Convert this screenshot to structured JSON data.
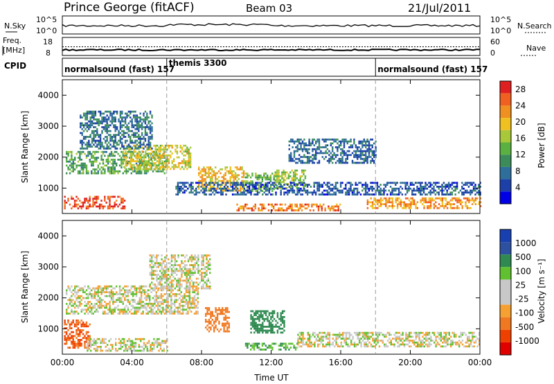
{
  "header": {
    "station": "Prince George (fitACF)",
    "beam": "Beam 03",
    "date": "21/Jul/2011"
  },
  "noise_panel": {
    "left_label": "N.Sky",
    "right_label": "N.Search",
    "left_ticks": [
      "10^5",
      "10^0"
    ],
    "right_ticks": [
      "10^5",
      "10^0"
    ]
  },
  "freq_panel": {
    "left_label_1": "Freq.",
    "left_label_2": "[MHz]",
    "left_ticks": [
      "18",
      "8"
    ],
    "right_label": "Nave",
    "right_ticks": [
      "60",
      "0"
    ]
  },
  "cpid_panel": {
    "label": "CPID",
    "segments": [
      {
        "start_hour": 0,
        "end_hour": 6,
        "text": "normalsound (fast) 157"
      },
      {
        "start_hour": 6,
        "end_hour": 18,
        "text": "themis 3300"
      },
      {
        "start_hour": 18,
        "end_hour": 24,
        "text": "normalsound (fast) 157"
      }
    ]
  },
  "colors": {
    "power_scale": [
      "#0000e6",
      "#1c3fa8",
      "#2e6e9a",
      "#3b8c5a",
      "#5ab040",
      "#a8c83a",
      "#f0c020",
      "#f09020",
      "#f06020",
      "#e02020"
    ],
    "velocity_scale": [
      "#e00000",
      "#f04000",
      "#f07820",
      "#f5a030",
      "#c8c8c8",
      "#c8c8c8",
      "#60c030",
      "#2e8a50",
      "#2e50a0",
      "#1840b0"
    ]
  },
  "chart_data": [
    {
      "type": "heatmap",
      "name": "power",
      "xlabel": "",
      "ylabel": "Slant Range [km]",
      "x_ticks": [
        "00:00",
        "04:00",
        "08:00",
        "12:00",
        "16:00",
        "20:00",
        "00:00"
      ],
      "y_ticks": [
        1000,
        2000,
        3000,
        4000
      ],
      "xlim_hours": [
        0,
        24
      ],
      "ylim_km": [
        180,
        4500
      ],
      "colorbar": {
        "label": "Power [dB]",
        "ticks": [
          4,
          8,
          12,
          16,
          20,
          24,
          28
        ],
        "range": [
          0,
          30
        ]
      },
      "regions": [
        {
          "t0": 0.1,
          "t1": 3.6,
          "r0": 350,
          "r1": 750,
          "level": 27
        },
        {
          "t0": 0.2,
          "t1": 6.0,
          "r0": 1500,
          "r1": 2200,
          "level": 12
        },
        {
          "t0": 3.5,
          "t1": 7.4,
          "r0": 1600,
          "r1": 2400,
          "level": 18
        },
        {
          "t0": 1.0,
          "t1": 5.2,
          "r0": 2300,
          "r1": 3500,
          "level": 8
        },
        {
          "t0": 7.8,
          "t1": 10.4,
          "r0": 900,
          "r1": 1700,
          "level": 20
        },
        {
          "t0": 10.4,
          "t1": 12.2,
          "r0": 900,
          "r1": 1500,
          "level": 14
        },
        {
          "t0": 12.2,
          "t1": 14.0,
          "r0": 1000,
          "r1": 1600,
          "level": 16
        },
        {
          "t0": 6.5,
          "t1": 24.0,
          "r0": 800,
          "r1": 1200,
          "level": 6
        },
        {
          "t0": 13.0,
          "t1": 18.0,
          "r0": 1800,
          "r1": 2600,
          "level": 7
        },
        {
          "t0": 17.5,
          "t1": 24.0,
          "r0": 380,
          "r1": 700,
          "level": 22
        },
        {
          "t0": 10.0,
          "t1": 16.0,
          "r0": 300,
          "r1": 500,
          "level": 24
        }
      ]
    },
    {
      "type": "heatmap",
      "name": "velocity",
      "xlabel": "Time UT",
      "ylabel": "Slant Range [km]",
      "x_ticks": [
        "00:00",
        "04:00",
        "08:00",
        "12:00",
        "16:00",
        "20:00",
        "00:00"
      ],
      "y_ticks": [
        1000,
        2000,
        3000,
        4000
      ],
      "xlim_hours": [
        0,
        24
      ],
      "ylim_km": [
        180,
        4500
      ],
      "colorbar": {
        "label": "Velocity [m s⁻¹]",
        "ticks": [
          1000,
          500,
          100,
          25,
          -25,
          -100,
          -500,
          -1000
        ]
      },
      "regions": [
        {
          "t0": 0.1,
          "t1": 1.6,
          "r0": 400,
          "r1": 1300,
          "velocity": -500
        },
        {
          "t0": 0.2,
          "t1": 7.8,
          "r0": 1500,
          "r1": 2400,
          "velocity": 0
        },
        {
          "t0": 1.4,
          "t1": 6.0,
          "r0": 300,
          "r1": 700,
          "velocity": 0
        },
        {
          "t0": 8.2,
          "t1": 9.6,
          "r0": 900,
          "r1": 1700,
          "velocity": -300
        },
        {
          "t0": 10.8,
          "t1": 12.8,
          "r0": 900,
          "r1": 1600,
          "velocity": 300
        },
        {
          "t0": 10.5,
          "t1": 13.5,
          "r0": 300,
          "r1": 550,
          "velocity": 80
        },
        {
          "t0": 13.5,
          "t1": 24.0,
          "r0": 400,
          "r1": 900,
          "velocity": 0
        },
        {
          "t0": 5.0,
          "t1": 8.5,
          "r0": 2300,
          "r1": 3400,
          "velocity": 0
        }
      ]
    }
  ],
  "mode_changes_hours": [
    6,
    18
  ],
  "time_label": "Time UT"
}
